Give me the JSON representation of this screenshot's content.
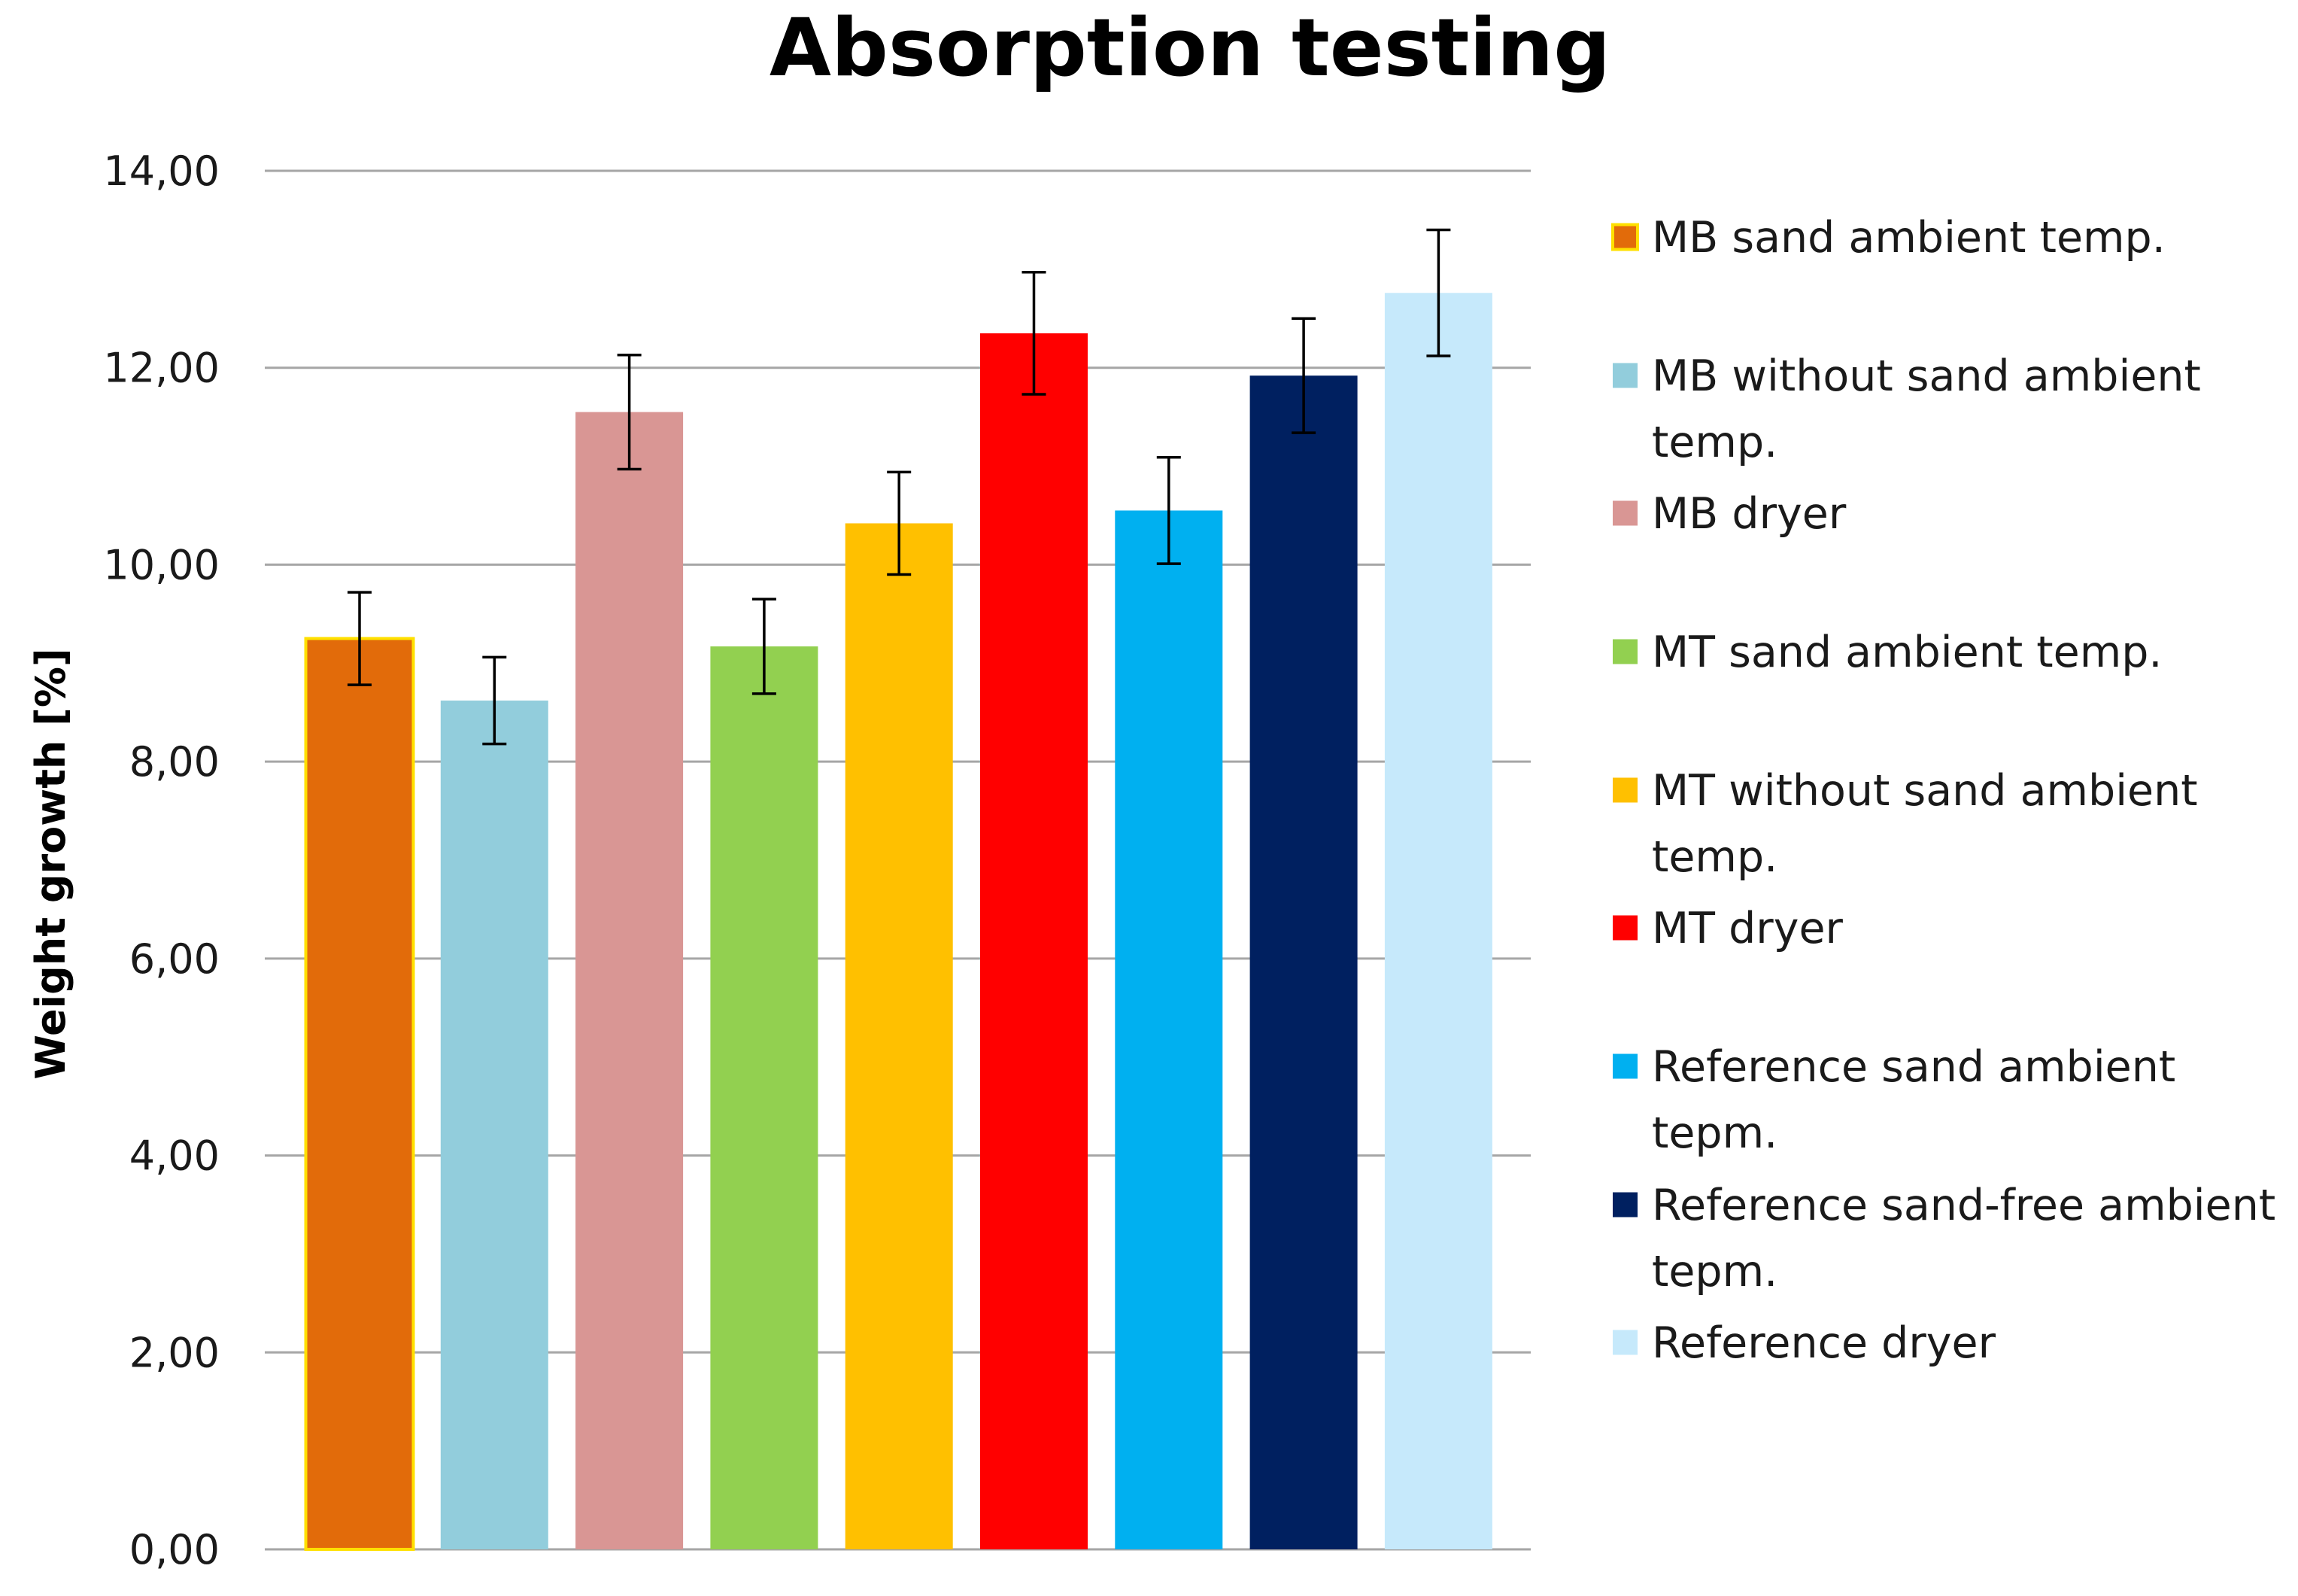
{
  "chart_data": {
    "type": "bar",
    "title": "Absorption testing",
    "xlabel": "",
    "ylabel": "Weight growth [%]",
    "ylim": [
      0,
      14
    ],
    "yticks": [
      0,
      2,
      4,
      6,
      8,
      10,
      12,
      14
    ],
    "ytick_labels": [
      "0,00",
      "2,00",
      "4,00",
      "6,00",
      "8,00",
      "10,00",
      "12,00",
      "14,00"
    ],
    "grid": true,
    "legend_position": "right",
    "series": [
      {
        "name": "MB sand ambient temp.",
        "legend_lines": [
          "MB sand ambient temp."
        ],
        "value": 9.25,
        "error": 0.47,
        "color": "#E26B0A",
        "edge": "#FFE000"
      },
      {
        "name": "MB without sand ambient temp.",
        "legend_lines": [
          "MB without sand ambient",
          "temp."
        ],
        "value": 8.62,
        "error": 0.44,
        "color": "#92CDDC",
        "edge": ""
      },
      {
        "name": "MB dryer",
        "legend_lines": [
          "MB dryer"
        ],
        "value": 11.55,
        "error": 0.58,
        "color": "#D99694",
        "edge": ""
      },
      {
        "name": "MT sand ambient temp.",
        "legend_lines": [
          "MT sand ambient temp."
        ],
        "value": 9.17,
        "error": 0.48,
        "color": "#92D050",
        "edge": ""
      },
      {
        "name": "MT without sand ambient temp.",
        "legend_lines": [
          "MT without sand ambient",
          "temp."
        ],
        "value": 10.42,
        "error": 0.52,
        "color": "#FFC000",
        "edge": ""
      },
      {
        "name": "MT dryer",
        "legend_lines": [
          "MT dryer"
        ],
        "value": 12.35,
        "error": 0.62,
        "color": "#FF0000",
        "edge": ""
      },
      {
        "name": "Reference sand ambient tepm.",
        "legend_lines": [
          "Reference sand ambient",
          "tepm."
        ],
        "value": 10.55,
        "error": 0.54,
        "color": "#00B0F0",
        "edge": ""
      },
      {
        "name": "Reference sand-free ambient tepm.",
        "legend_lines": [
          "Reference sand-free ambient",
          "tepm."
        ],
        "value": 11.92,
        "error": 0.58,
        "color": "#002060",
        "edge": ""
      },
      {
        "name": "Reference dryer",
        "legend_lines": [
          "Reference dryer"
        ],
        "value": 12.76,
        "error": 0.64,
        "color": "#C6E9FB",
        "edge": ""
      }
    ]
  }
}
